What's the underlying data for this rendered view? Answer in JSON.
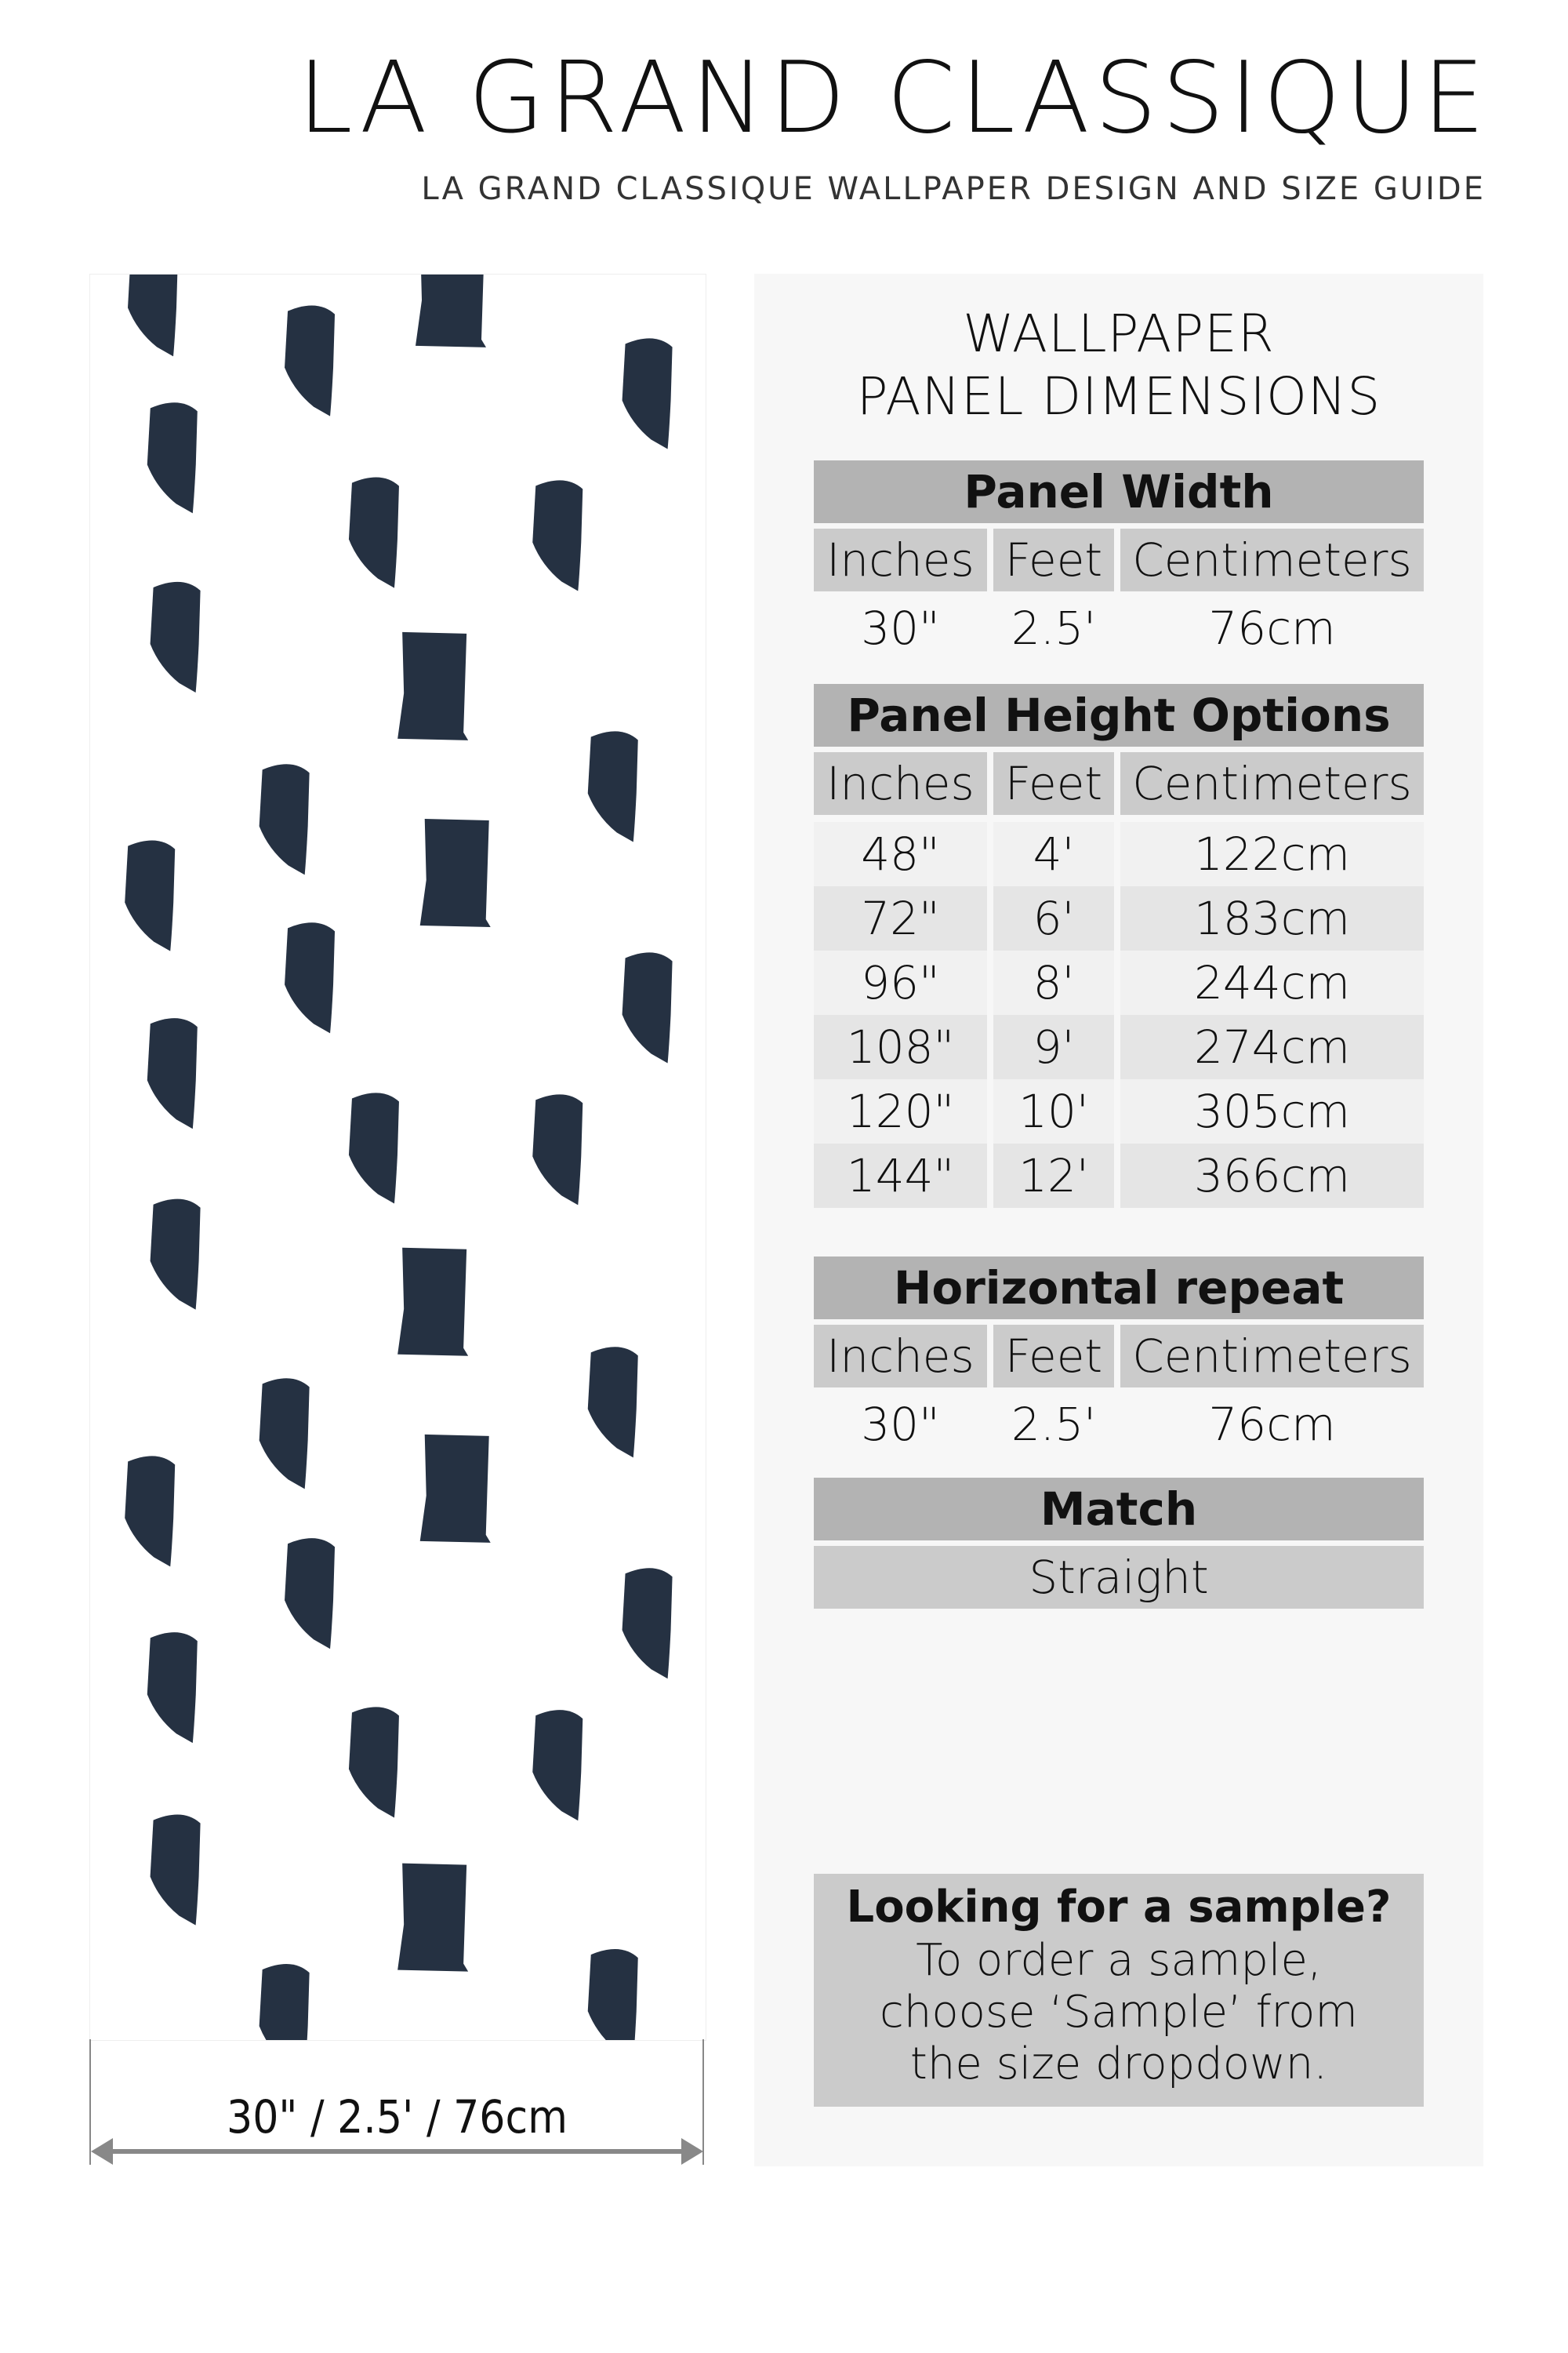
{
  "brand": {
    "title": "LA GRAND CLASSIQUE",
    "subtitle": "LA GRAND CLASSIQUE WALLPAPER DESIGN AND SIZE GUIDE"
  },
  "pattern": {
    "stroke_color": "#253142",
    "background": "#ffffff"
  },
  "dimension_label": "30\" / 2.5' / 76cm",
  "panel": {
    "heading_line1": "WALLPAPER",
    "heading_line2": "PANEL DIMENSIONS",
    "columns": {
      "inches": "Inches",
      "feet": "Feet",
      "cm": "Centimeters"
    },
    "panel_width": {
      "title": "Panel Width",
      "inches": "30\"",
      "feet": "2.5'",
      "cm": "76cm"
    },
    "panel_height": {
      "title": "Panel Height Options",
      "rows": [
        {
          "inches": "48\"",
          "feet": "4'",
          "cm": "122cm"
        },
        {
          "inches": "72\"",
          "feet": "6'",
          "cm": "183cm"
        },
        {
          "inches": "96\"",
          "feet": "8'",
          "cm": "244cm"
        },
        {
          "inches": "108\"",
          "feet": "9'",
          "cm": "274cm"
        },
        {
          "inches": "120\"",
          "feet": "10'",
          "cm": "305cm"
        },
        {
          "inches": "144\"",
          "feet": "12'",
          "cm": "366cm"
        }
      ]
    },
    "horizontal_repeat": {
      "title": "Horizontal repeat",
      "inches": "30\"",
      "feet": "2.5'",
      "cm": "76cm"
    },
    "match": {
      "title": "Match",
      "value": "Straight"
    },
    "sample": {
      "title": "Looking for a sample?",
      "line1": "To order a sample,",
      "line2": "choose ‘Sample’ from",
      "line3": "the size dropdown."
    }
  }
}
